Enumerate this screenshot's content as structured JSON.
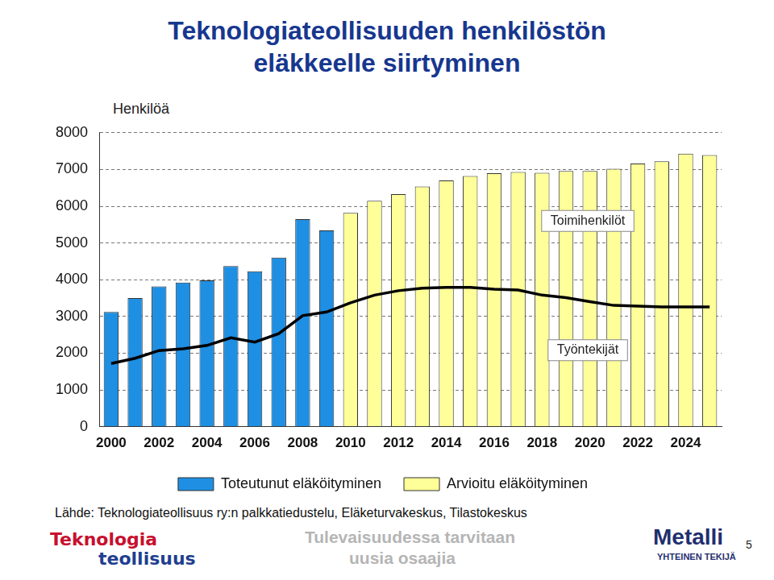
{
  "chart_data": {
    "type": "bar",
    "title": "Teknologiateollisuuden henkilöstön\neläkkeelle siirtyminen",
    "y_label": "Henkilöä",
    "categories": [
      "2000",
      null,
      "2002",
      null,
      "2004",
      null,
      "2006",
      null,
      "2008",
      null,
      "2010",
      null,
      "2012",
      null,
      "2014",
      null,
      "2016",
      null,
      "2018",
      null,
      "2020",
      null,
      "2022",
      null,
      "2024",
      null
    ],
    "series": [
      {
        "name": "Toteutunut eläköityminen",
        "type": "bar",
        "color": "#1e8fe3",
        "values": [
          3120,
          3500,
          3820,
          3920,
          3980,
          4370,
          4230,
          4600,
          5650,
          5340,
          null,
          null,
          null,
          null,
          null,
          null,
          null,
          null,
          null,
          null,
          null,
          null,
          null,
          null,
          null,
          null
        ]
      },
      {
        "name": "Arvioitu eläköityminen",
        "type": "bar",
        "color": "#ffff99",
        "values": [
          null,
          null,
          null,
          null,
          null,
          null,
          null,
          null,
          null,
          null,
          5820,
          6150,
          6330,
          6540,
          6700,
          6820,
          6900,
          6930,
          6910,
          6960,
          6960,
          7020,
          7160,
          7220,
          7430,
          7390
        ]
      },
      {
        "name": "Työntekijät",
        "type": "line",
        "color": "#000000",
        "values": [
          1720,
          1860,
          2070,
          2120,
          2210,
          2420,
          2300,
          2530,
          3020,
          3120,
          3370,
          3580,
          3700,
          3770,
          3790,
          3790,
          3740,
          3720,
          3580,
          3510,
          3400,
          3300,
          3280,
          3260,
          3260,
          3260
        ]
      }
    ],
    "annotations": [
      "Toimihenkilöt"
    ],
    "ylim": [
      0,
      8000
    ],
    "yticks": [
      0,
      1000,
      2000,
      3000,
      4000,
      5000,
      6000,
      7000,
      8000
    ],
    "grid": true,
    "legend": "bottom",
    "source": "Lähde: Teknologiateollisuus ry:n palkkatiedustelu, Eläketurvakeskus, Tilastokeskus",
    "footer": {
      "logo_left": [
        "Teknologia",
        "teollisuus"
      ],
      "slogan": [
        "Tulevaisuudessa tarvitaan",
        "uusia osaajia"
      ],
      "logo_right": [
        "Metalli",
        "YHTEINEN TEKIJÄ"
      ],
      "page": 5
    }
  }
}
